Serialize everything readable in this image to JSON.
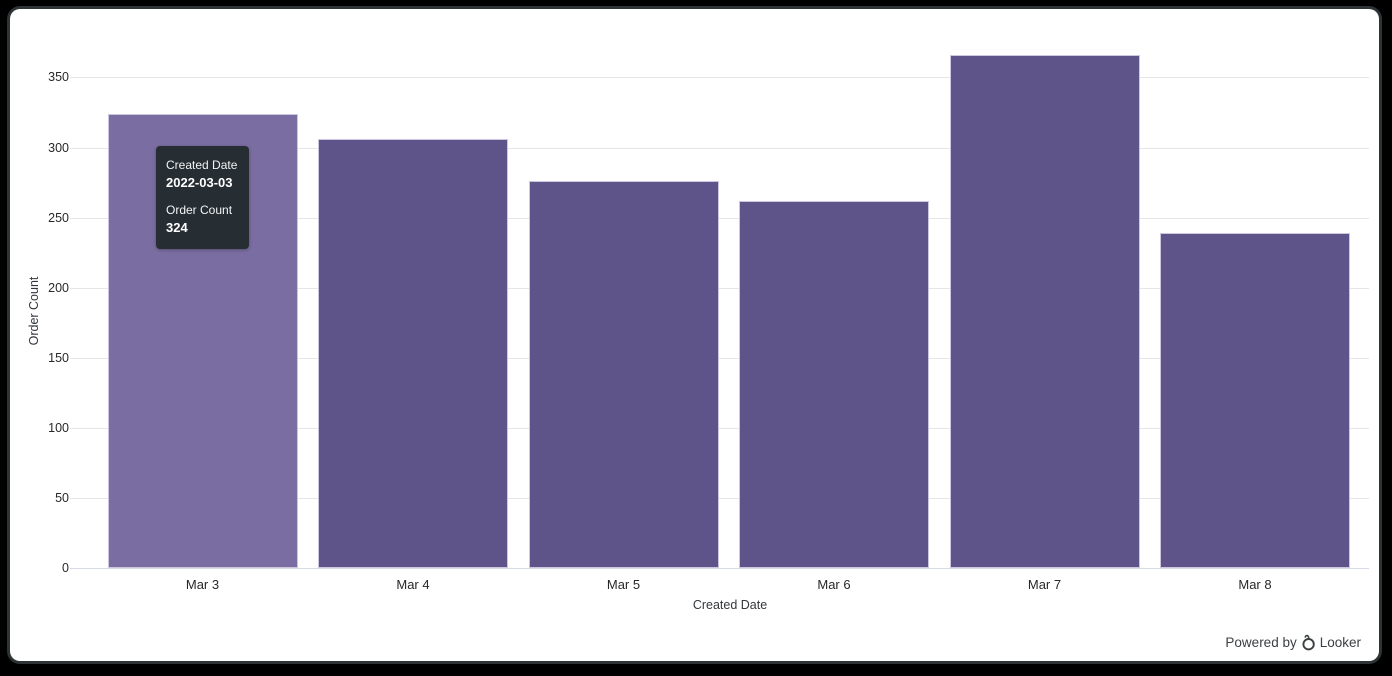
{
  "chart_data": {
    "type": "bar",
    "title": "",
    "categories": [
      "Mar 3",
      "Mar 4",
      "Mar 5",
      "Mar 6",
      "Mar 7",
      "Mar 8"
    ],
    "values": [
      324,
      306,
      276,
      262,
      366,
      239
    ],
    "xlabel": "Created Date",
    "ylabel": "Order Count",
    "ylim": [
      0,
      366
    ],
    "yticks": [
      0,
      50,
      100,
      150,
      200,
      250,
      300,
      350
    ],
    "grid": "horizontal",
    "legend": "none",
    "highlighted_index": 0,
    "bar_color": "#5f5489",
    "bar_hover_color": "#7a6da1"
  },
  "tooltip": {
    "label1": "Created Date",
    "value1": "2022-03-03",
    "label2": "Order Count",
    "value2": "324",
    "bg_color": "#262d33"
  },
  "footer": {
    "powered_by": "Powered by",
    "brand": "Looker",
    "looker_logo_icon": "looker-pendant-circle",
    "text_color": "#3c4043"
  }
}
